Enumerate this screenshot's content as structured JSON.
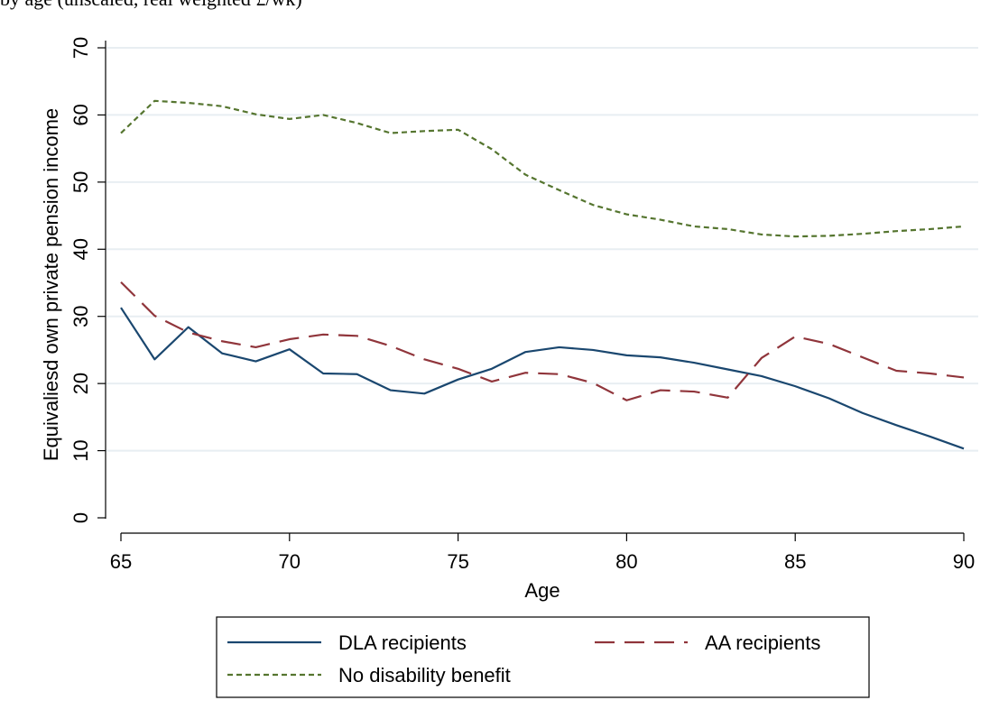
{
  "title_fragment": "by age (unscaled, real weighted £/wk)",
  "chart_data": {
    "type": "line",
    "title": "",
    "xlabel": "Age",
    "ylabel": "Equivaliesd own private pension income",
    "xlim": [
      65,
      90
    ],
    "ylim": [
      0,
      70
    ],
    "x_ticks": [
      "65",
      "70",
      "75",
      "80",
      "85",
      "90"
    ],
    "y_ticks": [
      "0",
      "10",
      "20",
      "30",
      "40",
      "50",
      "60",
      "70"
    ],
    "grid": "horizontal",
    "legend_position": "bottom",
    "x": [
      65,
      66,
      67,
      68,
      69,
      70,
      71,
      72,
      73,
      74,
      75,
      76,
      77,
      78,
      79,
      80,
      81,
      82,
      83,
      84,
      85,
      86,
      87,
      88,
      89,
      90
    ],
    "series": [
      {
        "name": "DLA recipients",
        "color": "#1a476f",
        "dash": "solid",
        "values": [
          31.3,
          23.6,
          28.4,
          24.5,
          23.3,
          25.1,
          21.5,
          21.4,
          19.0,
          18.5,
          20.6,
          22.2,
          24.7,
          25.4,
          25.0,
          24.2,
          23.9,
          23.1,
          22.1,
          21.1,
          19.6,
          17.8,
          15.6,
          13.8,
          12.1,
          10.3
        ]
      },
      {
        "name": "AA recipients",
        "color": "#90353b",
        "dash": "long-dash",
        "values": [
          35.1,
          30.1,
          27.6,
          26.3,
          25.4,
          26.6,
          27.3,
          27.1,
          25.6,
          23.6,
          22.2,
          20.3,
          21.6,
          21.4,
          20.1,
          17.5,
          19.0,
          18.8,
          17.9,
          23.8,
          27.0,
          25.9,
          23.9,
          21.9,
          21.5,
          20.9
        ]
      },
      {
        "name": "No disability benefit",
        "color": "#55752f",
        "dash": "short-dash",
        "values": [
          57.3,
          62.1,
          61.8,
          61.3,
          60.1,
          59.4,
          60.0,
          58.8,
          57.3,
          57.6,
          57.8,
          54.9,
          51.1,
          48.8,
          46.6,
          45.2,
          44.4,
          43.4,
          43.0,
          42.2,
          41.9,
          42.0,
          42.3,
          42.7,
          43.0,
          43.4
        ]
      }
    ]
  }
}
